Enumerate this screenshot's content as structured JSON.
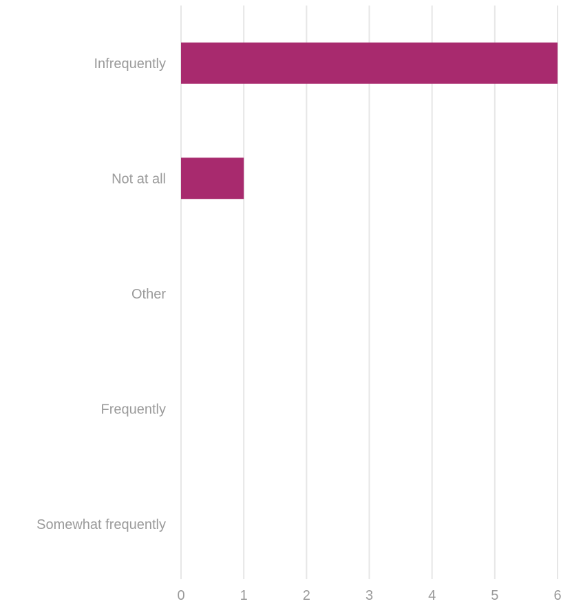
{
  "chart_data": {
    "type": "bar",
    "orientation": "horizontal",
    "categories": [
      "Infrequently",
      "Not at all",
      "Other",
      "Frequently",
      "Somewhat frequently"
    ],
    "values": [
      6,
      1,
      0,
      0,
      0
    ],
    "xlim": [
      0,
      6
    ],
    "x_ticks": [
      "0",
      "1",
      "2",
      "3",
      "4",
      "5",
      "6"
    ],
    "grid": "vertical",
    "legend": "none",
    "colors": {
      "bar": "#a82a6e",
      "grid": "#e6e6e6",
      "label": "#9a9a9a"
    }
  }
}
